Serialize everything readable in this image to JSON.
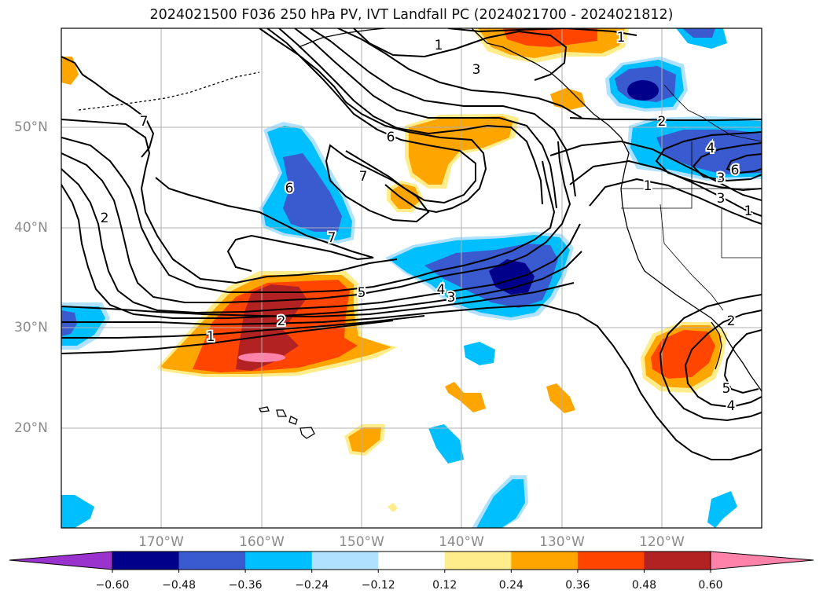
{
  "title": "2024021500 F036 250 hPa PV, IVT Landfall PC (2024021700 - 2024021812)",
  "lat_labels": [
    "50°N",
    "40°N",
    "30°N",
    "20°N"
  ],
  "lon_labels": [
    "170°W",
    "160°W",
    "150°W",
    "140°W",
    "130°W",
    "120°W"
  ],
  "contour_labels": [
    "1",
    "1",
    "3",
    "2",
    "4",
    "3",
    "6",
    "3",
    "7",
    "6",
    "1",
    "7",
    "1",
    "6",
    "2",
    "7",
    "5",
    "4",
    "3",
    "2",
    "1",
    "2",
    "5",
    "4"
  ],
  "colorbar": {
    "ticks": [
      "−0.60",
      "−0.48",
      "−0.36",
      "−0.24",
      "−0.12",
      "0.12",
      "0.24",
      "0.36",
      "0.48",
      "0.60"
    ],
    "colors": [
      "#9a32cd",
      "#00008b",
      "#3a5bd0",
      "#00bfff",
      "#b0e2ff",
      "#ffffff",
      "#ffec8b",
      "#ffa500",
      "#ff4500",
      "#b22222",
      "#ff82ab"
    ]
  }
}
